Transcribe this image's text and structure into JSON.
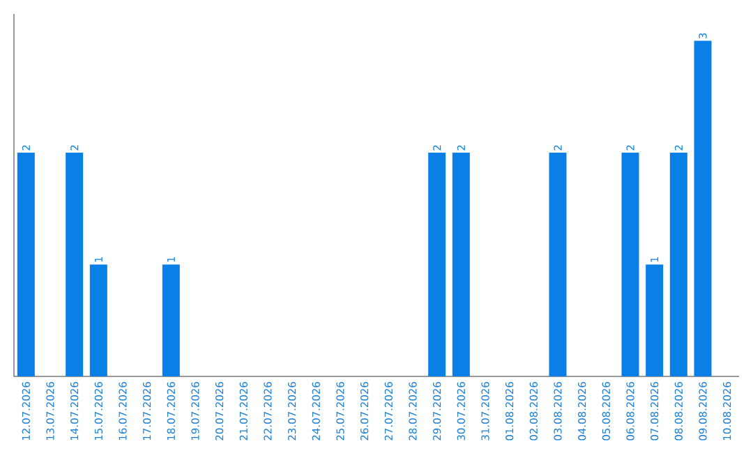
{
  "chart_data": {
    "type": "bar",
    "categories": [
      "12.07.2026",
      "13.07.2026",
      "14.07.2026",
      "15.07.2026",
      "16.07.2026",
      "17.07.2026",
      "18.07.2026",
      "19.07.2026",
      "20.07.2026",
      "21.07.2026",
      "22.07.2026",
      "23.07.2026",
      "24.07.2026",
      "25.07.2026",
      "26.07.2026",
      "27.07.2026",
      "28.07.2026",
      "29.07.2026",
      "30.07.2026",
      "31.07.2026",
      "01.08.2026",
      "02.08.2026",
      "03.08.2026",
      "04.08.2026",
      "05.08.2026",
      "06.08.2026",
      "07.08.2026",
      "08.08.2026",
      "09.08.2026",
      "10.08.2026"
    ],
    "values": [
      2,
      0,
      2,
      1,
      0,
      0,
      1,
      0,
      0,
      0,
      0,
      0,
      0,
      0,
      0,
      0,
      0,
      2,
      2,
      0,
      0,
      0,
      2,
      0,
      0,
      2,
      1,
      2,
      3,
      0
    ],
    "value_labels": [
      "2",
      null,
      "2",
      "1",
      null,
      null,
      "1",
      null,
      null,
      null,
      null,
      null,
      null,
      null,
      null,
      null,
      null,
      "2",
      "2",
      null,
      null,
      null,
      "2",
      null,
      null,
      "2",
      "1",
      "2",
      "3",
      null
    ],
    "color": "#0a7fe6"
  }
}
